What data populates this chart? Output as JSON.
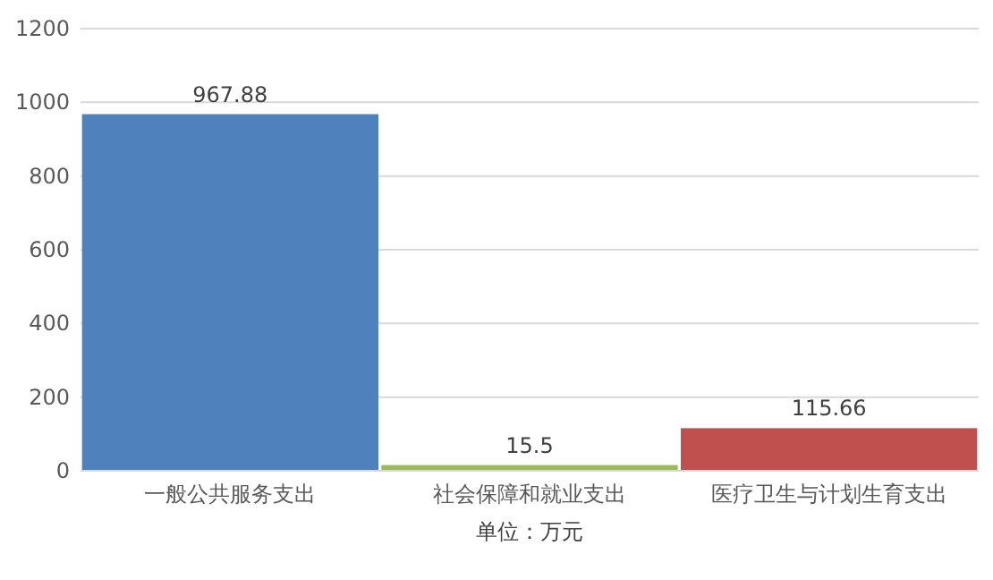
{
  "chart_data": {
    "type": "bar",
    "categories": [
      "一般公共服务支出",
      "社会保障和就业支出",
      "医疗卫生与计划生育支出"
    ],
    "values": [
      967.88,
      15.5,
      115.66
    ],
    "colors": [
      "#4f81bd",
      "#9bbb59",
      "#c0504d"
    ],
    "xlabel": "单位：万元",
    "ylim": [
      0,
      1200
    ],
    "yticks": [
      0,
      200,
      400,
      600,
      800,
      1000,
      1200
    ],
    "grid": "y",
    "data_labels": true
  }
}
